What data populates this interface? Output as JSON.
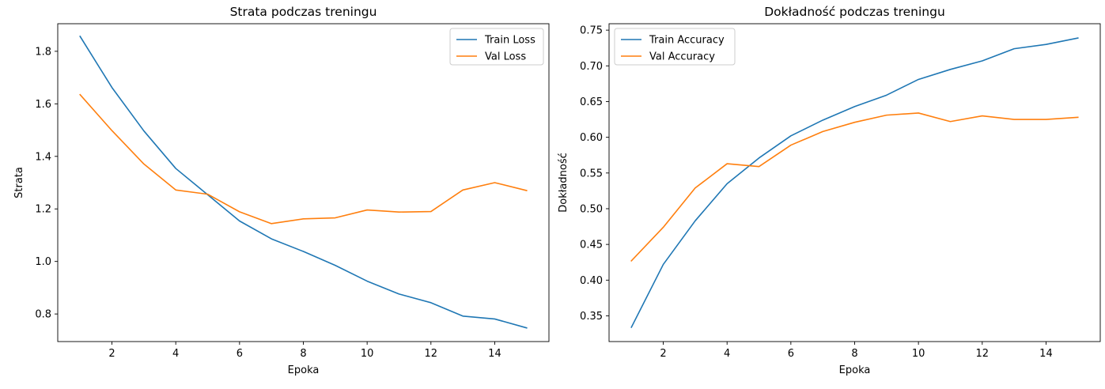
{
  "chart_data": [
    {
      "type": "line",
      "title": "Strata podczas treningu",
      "xlabel": "Epoka",
      "ylabel": "Strata",
      "x": [
        1,
        2,
        3,
        4,
        5,
        6,
        7,
        8,
        9,
        10,
        11,
        12,
        13,
        14,
        15
      ],
      "xlim": [
        0.3,
        15.7
      ],
      "ylim": [
        0.695,
        1.905
      ],
      "xticks": [
        2,
        4,
        6,
        8,
        10,
        12,
        14
      ],
      "xtick_labels": [
        "2",
        "4",
        "6",
        "8",
        "10",
        "12",
        "14"
      ],
      "yticks": [
        0.8,
        1.0,
        1.2,
        1.4,
        1.6,
        1.8
      ],
      "ytick_labels": [
        "0.8",
        "1.0",
        "1.2",
        "1.4",
        "1.6",
        "1.8"
      ],
      "grid": false,
      "legend": "top-right",
      "series": [
        {
          "name": "Train Loss",
          "color": "#1f77b4",
          "values": [
            1.857,
            1.662,
            1.497,
            1.354,
            1.254,
            1.154,
            1.086,
            1.038,
            0.985,
            0.925,
            0.876,
            0.843,
            0.792,
            0.781,
            0.747
          ]
        },
        {
          "name": "Val Loss",
          "color": "#ff7f0e",
          "values": [
            1.635,
            1.498,
            1.371,
            1.272,
            1.256,
            1.189,
            1.144,
            1.162,
            1.166,
            1.196,
            1.188,
            1.19,
            1.272,
            1.3,
            1.27
          ]
        }
      ]
    },
    {
      "type": "line",
      "title": "Dokładność podczas treningu",
      "xlabel": "Epoka",
      "ylabel": "Dokładność",
      "x": [
        1,
        2,
        3,
        4,
        5,
        6,
        7,
        8,
        9,
        10,
        11,
        12,
        13,
        14,
        15
      ],
      "xlim": [
        0.3,
        15.7
      ],
      "ylim": [
        0.314,
        0.759
      ],
      "xticks": [
        2,
        4,
        6,
        8,
        10,
        12,
        14
      ],
      "xtick_labels": [
        "2",
        "4",
        "6",
        "8",
        "10",
        "12",
        "14"
      ],
      "yticks": [
        0.35,
        0.4,
        0.45,
        0.5,
        0.55,
        0.6,
        0.65,
        0.7,
        0.75
      ],
      "ytick_labels": [
        "0.35",
        "0.40",
        "0.45",
        "0.50",
        "0.55",
        "0.60",
        "0.65",
        "0.70",
        "0.75"
      ],
      "grid": false,
      "legend": "top-left",
      "series": [
        {
          "name": "Train Accuracy",
          "color": "#1f77b4",
          "values": [
            0.334,
            0.422,
            0.483,
            0.535,
            0.571,
            0.602,
            0.624,
            0.643,
            0.659,
            0.681,
            0.695,
            0.707,
            0.724,
            0.73,
            0.739
          ]
        },
        {
          "name": "Val Accuracy",
          "color": "#ff7f0e",
          "values": [
            0.427,
            0.474,
            0.529,
            0.563,
            0.559,
            0.589,
            0.608,
            0.621,
            0.631,
            0.634,
            0.622,
            0.63,
            0.625,
            0.625,
            0.628
          ]
        }
      ]
    }
  ]
}
